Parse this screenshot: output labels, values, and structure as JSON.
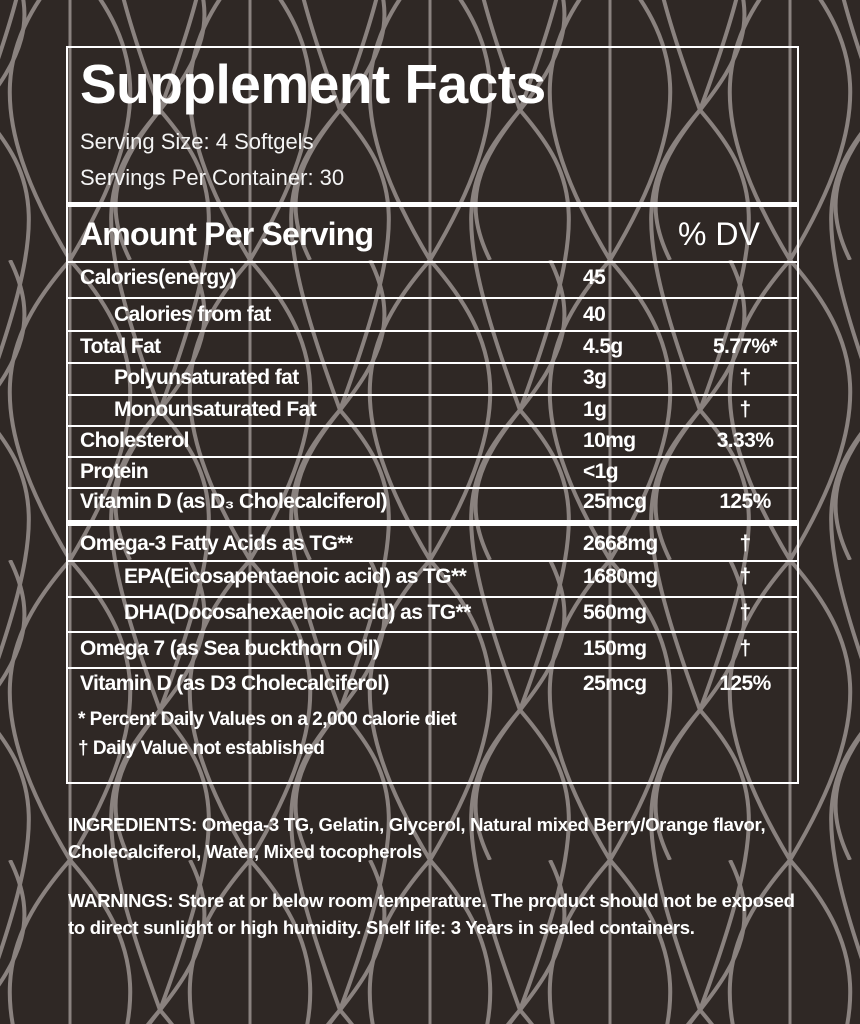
{
  "colors": {
    "background": "#2f2825",
    "pattern": "#8a827f",
    "text": "#ffffff"
  },
  "header": {
    "title": "Supplement Facts",
    "serving_size": "Serving Size: 4 Softgels",
    "servings_per_container": "Servings Per Container: 30"
  },
  "table": {
    "amount_header": "Amount Per Serving",
    "dv_header": "% DV",
    "rows": [
      {
        "name": "Calories(energy)",
        "amount": "45",
        "dv": ""
      },
      {
        "name": "Calories from fat",
        "amount": "40",
        "dv": ""
      },
      {
        "name": "Total Fat",
        "amount": "4.5g",
        "dv": "5.77%*"
      },
      {
        "name": "Polyunsaturated fat",
        "amount": "3g",
        "dv": "†"
      },
      {
        "name": "Monounsaturated Fat",
        "amount": "1g",
        "dv": "†"
      },
      {
        "name": "Cholesterol",
        "amount": "10mg",
        "dv": "3.33%"
      },
      {
        "name": "Protein",
        "amount": "<1g",
        "dv": ""
      },
      {
        "name": "Vitamin D (as D₃ Cholecalciferol)",
        "amount": "25mcg",
        "dv": "125%"
      }
    ],
    "rows2": [
      {
        "name": "Omega-3 Fatty Acids as TG**",
        "amount": "2668mg",
        "dv": "†"
      },
      {
        "name": "EPA(Eicosapentaenoic acid) as TG**",
        "amount": "1680mg",
        "dv": "†"
      },
      {
        "name": "DHA(Docosahexaenoic acid) as TG**",
        "amount": "560mg",
        "dv": "†"
      },
      {
        "name": "Omega 7 (as Sea buckthorn Oil)",
        "amount": "150mg",
        "dv": "†"
      },
      {
        "name": "Vitamin D (as D3 Cholecalciferol)",
        "amount": "25mcg",
        "dv": "125%"
      }
    ],
    "footnotes": [
      "* Percent Daily Values on a 2,000 calorie diet",
      "† Daily Value not established"
    ]
  },
  "ingredients": "INGREDIENTS: Omega-3 TG, Gelatin, Glycerol, Natural mixed Berry/Orange flavor, Cholecalciferol, Water, Mixed tocopherols",
  "warnings": "WARNINGS: Store at or below room temperature. The product should not be exposed to direct sunlight or high humidity. Shelf life: 3 Years in sealed containers."
}
